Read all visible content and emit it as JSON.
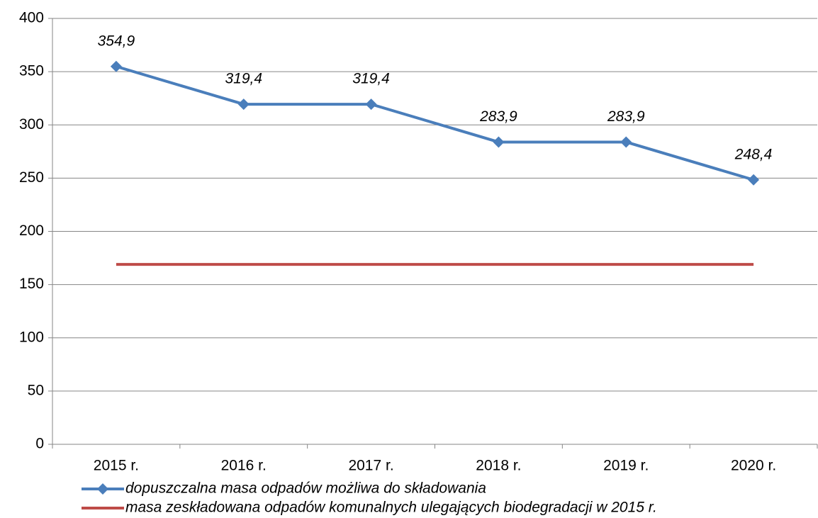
{
  "chart_data": {
    "type": "line",
    "categories": [
      "2015 r.",
      "2016 r.",
      "2017 r.",
      "2018 r.",
      "2019 r.",
      "2020 r."
    ],
    "series": [
      {
        "name": "dopuszczalna masa odpadów możliwa do składowania",
        "color": "#4a7ebb",
        "values": [
          354.9,
          319.4,
          319.4,
          283.9,
          283.9,
          248.4
        ],
        "value_labels": [
          "354,9",
          "319,4",
          "319,4",
          "283,9",
          "283,9",
          "248,4"
        ]
      },
      {
        "name": "masa zeskładowana odpadów komunalnych ulegających biodegradacji w 2015 r.",
        "color": "#be4b48",
        "values": [
          169,
          169,
          169,
          169,
          169,
          169
        ]
      }
    ],
    "ylim": [
      0,
      400
    ],
    "yticks": [
      0,
      50,
      100,
      150,
      200,
      250,
      300,
      350,
      400
    ],
    "grid": true
  }
}
